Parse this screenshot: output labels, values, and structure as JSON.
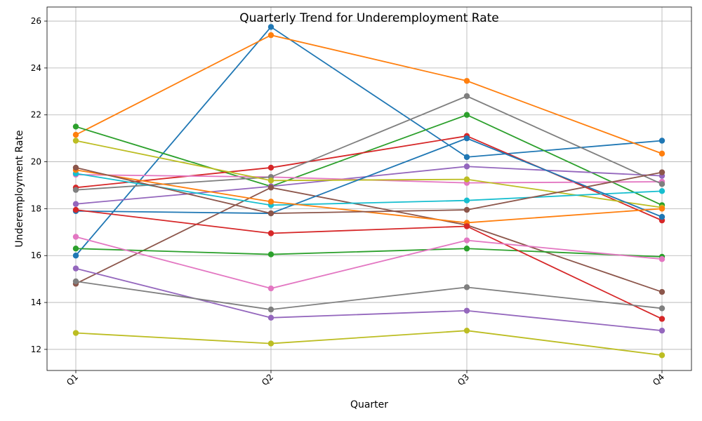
{
  "chart_data": {
    "type": "line",
    "title": "Quarterly Trend for Underemployment Rate",
    "xlabel": "Quarter",
    "ylabel": "Underemployment Rate",
    "categories": [
      "Q1",
      "Q2",
      "Q3",
      "Q4"
    ],
    "ylim": [
      11.1,
      26.6
    ],
    "yticks": [
      12,
      14,
      16,
      18,
      20,
      22,
      24,
      26
    ],
    "grid": true,
    "legend": "none",
    "series": [
      {
        "color": "#1f77b4",
        "values": [
          16.0,
          25.75,
          20.2,
          20.9
        ]
      },
      {
        "color": "#ff7f0e",
        "values": [
          21.15,
          25.4,
          23.45,
          20.35
        ]
      },
      {
        "color": "#2ca02c",
        "values": [
          21.5,
          18.95,
          22.0,
          18.15
        ]
      },
      {
        "color": "#d62728",
        "values": [
          18.9,
          19.75,
          21.1,
          17.5
        ]
      },
      {
        "color": "#9467bd",
        "values": [
          18.2,
          18.95,
          19.8,
          19.4
        ]
      },
      {
        "color": "#8c564b",
        "values": [
          14.8,
          18.9,
          17.3,
          14.45
        ]
      },
      {
        "color": "#e377c2",
        "values": [
          19.45,
          19.35,
          19.1,
          19.15
        ]
      },
      {
        "color": "#7f7f7f",
        "values": [
          18.8,
          19.35,
          22.8,
          19.05
        ]
      },
      {
        "color": "#bcbd22",
        "values": [
          20.9,
          19.2,
          19.25,
          18.05
        ]
      },
      {
        "color": "#17becf",
        "values": [
          19.5,
          18.15,
          18.35,
          18.75
        ]
      },
      {
        "color": "#1f77b4",
        "values": [
          17.9,
          17.8,
          21.0,
          17.65
        ]
      },
      {
        "color": "#ff7f0e",
        "values": [
          19.65,
          18.3,
          17.4,
          18.0
        ]
      },
      {
        "color": "#2ca02c",
        "values": [
          16.3,
          16.05,
          16.3,
          15.95
        ]
      },
      {
        "color": "#d62728",
        "values": [
          17.95,
          16.95,
          17.25,
          13.3
        ]
      },
      {
        "color": "#9467bd",
        "values": [
          15.45,
          13.35,
          13.65,
          12.8
        ]
      },
      {
        "color": "#8c564b",
        "values": [
          19.75,
          17.8,
          17.95,
          19.55
        ]
      },
      {
        "color": "#e377c2",
        "values": [
          16.8,
          14.6,
          16.65,
          15.85
        ]
      },
      {
        "color": "#7f7f7f",
        "values": [
          14.9,
          13.7,
          14.65,
          13.75
        ]
      },
      {
        "color": "#bcbd22",
        "values": [
          12.7,
          12.25,
          12.8,
          11.75
        ]
      }
    ]
  }
}
